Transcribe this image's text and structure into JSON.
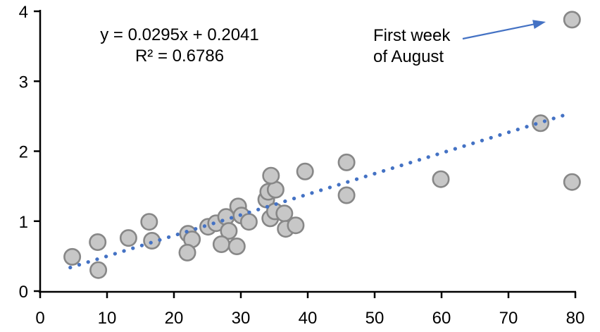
{
  "chart_data": {
    "type": "scatter",
    "title": "",
    "xlabel": "",
    "ylabel": "",
    "x_axis": {
      "min": 0,
      "max": 80,
      "ticks": [
        0,
        10,
        20,
        30,
        40,
        50,
        60,
        70,
        80
      ]
    },
    "y_axis": {
      "min": 0,
      "max": 4,
      "ticks": [
        0,
        1,
        2,
        3,
        4
      ]
    },
    "grid": false,
    "legend": false,
    "points": [
      [
        4.8,
        0.49
      ],
      [
        8.6,
        0.7
      ],
      [
        8.7,
        0.3
      ],
      [
        13.2,
        0.76
      ],
      [
        16.3,
        0.99
      ],
      [
        16.7,
        0.72
      ],
      [
        22.1,
        0.82
      ],
      [
        22.7,
        0.74
      ],
      [
        22.0,
        0.55
      ],
      [
        25.1,
        0.92
      ],
      [
        26.3,
        0.97
      ],
      [
        27.8,
        1.06
      ],
      [
        28.2,
        0.86
      ],
      [
        27.1,
        0.67
      ],
      [
        29.4,
        0.64
      ],
      [
        29.6,
        1.21
      ],
      [
        30.1,
        1.08
      ],
      [
        31.2,
        0.99
      ],
      [
        33.8,
        1.31
      ],
      [
        34.1,
        1.42
      ],
      [
        35.2,
        1.45
      ],
      [
        34.5,
        1.65
      ],
      [
        34.4,
        1.04
      ],
      [
        35.1,
        1.14
      ],
      [
        36.5,
        1.11
      ],
      [
        36.7,
        0.89
      ],
      [
        38.2,
        0.94
      ],
      [
        39.6,
        1.71
      ],
      [
        45.8,
        1.84
      ],
      [
        45.8,
        1.37
      ],
      [
        59.9,
        1.6
      ],
      [
        74.8,
        2.4
      ],
      [
        79.5,
        1.56
      ],
      [
        79.5,
        3.88
      ]
    ],
    "trendline": {
      "slope": 0.0295,
      "intercept": 0.2041
    },
    "equation": {
      "line1": "y = 0.0295x + 0.2041",
      "line2": "R² = 0.6786"
    },
    "annotation": {
      "line1": "First week",
      "line2": "of August",
      "target_point": [
        79.5,
        3.88
      ]
    },
    "colors": {
      "trend": "#4472c4",
      "arrow": "#4472c4",
      "marker_fill": "#c7c7c7",
      "marker_stroke": "#878787",
      "axis": "#000000",
      "text": "#000000"
    }
  }
}
